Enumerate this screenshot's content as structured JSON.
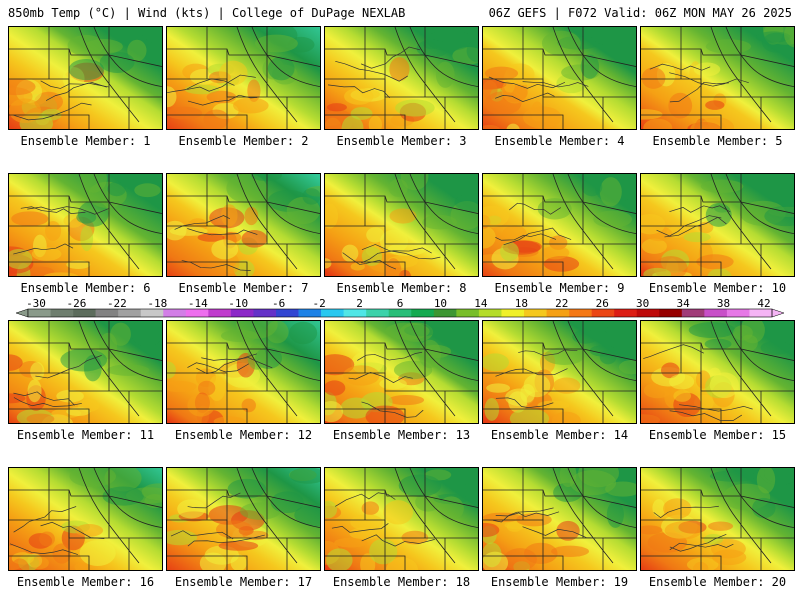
{
  "header": {
    "left_title": "850mb Temp (°C) | Wind (kts) | College of DuPage NEXLAB",
    "right_title": "06Z GEFS | F072 Valid: 06Z MON MAY 26 2025"
  },
  "panels": [
    {
      "label": "Ensemble Member: 1"
    },
    {
      "label": "Ensemble Member: 2"
    },
    {
      "label": "Ensemble Member: 3"
    },
    {
      "label": "Ensemble Member: 4"
    },
    {
      "label": "Ensemble Member: 5"
    },
    {
      "label": "Ensemble Member: 6"
    },
    {
      "label": "Ensemble Member: 7"
    },
    {
      "label": "Ensemble Member: 8"
    },
    {
      "label": "Ensemble Member: 9"
    },
    {
      "label": "Ensemble Member: 10"
    },
    {
      "label": "Ensemble Member: 11"
    },
    {
      "label": "Ensemble Member: 12"
    },
    {
      "label": "Ensemble Member: 13"
    },
    {
      "label": "Ensemble Member: 14"
    },
    {
      "label": "Ensemble Member: 15"
    },
    {
      "label": "Ensemble Member: 16"
    },
    {
      "label": "Ensemble Member: 17"
    },
    {
      "label": "Ensemble Member: 18"
    },
    {
      "label": "Ensemble Member: 19"
    },
    {
      "label": "Ensemble Member: 20"
    }
  ],
  "colorbar": {
    "tick_labels": [
      "-30",
      "-26",
      "-22",
      "-18",
      "-14",
      "-10",
      "-6",
      "-2",
      "2",
      "6",
      "10",
      "14",
      "18",
      "22",
      "26",
      "30",
      "34",
      "38",
      "42"
    ],
    "colors": [
      "#8a9a8a",
      "#6e7e6e",
      "#5c6c5c",
      "#828282",
      "#a0a0a0",
      "#c8c8c8",
      "#d27ee6",
      "#ee6eee",
      "#c03ccd",
      "#8c28c8",
      "#6432c8",
      "#3246d2",
      "#1e82e6",
      "#28c8f0",
      "#50e6e6",
      "#3cd2aa",
      "#28be78",
      "#14aa50",
      "#3c9632",
      "#78be28",
      "#b4dc28",
      "#f0f028",
      "#f5c81e",
      "#f5a014",
      "#f57814",
      "#eb4614",
      "#dc1e14",
      "#be0a0a",
      "#960000",
      "#a03c78",
      "#c850c8",
      "#e678e6",
      "#f5b4f5"
    ]
  },
  "map_colors": {
    "cool": "#1e9646",
    "cyan": "#32c896",
    "green": "#64b432",
    "lime": "#b4dc32",
    "yellow": "#f0f03c",
    "gold": "#f5c81e",
    "orange": "#f5a014",
    "darkorange": "#f07814",
    "red": "#e63c14"
  }
}
